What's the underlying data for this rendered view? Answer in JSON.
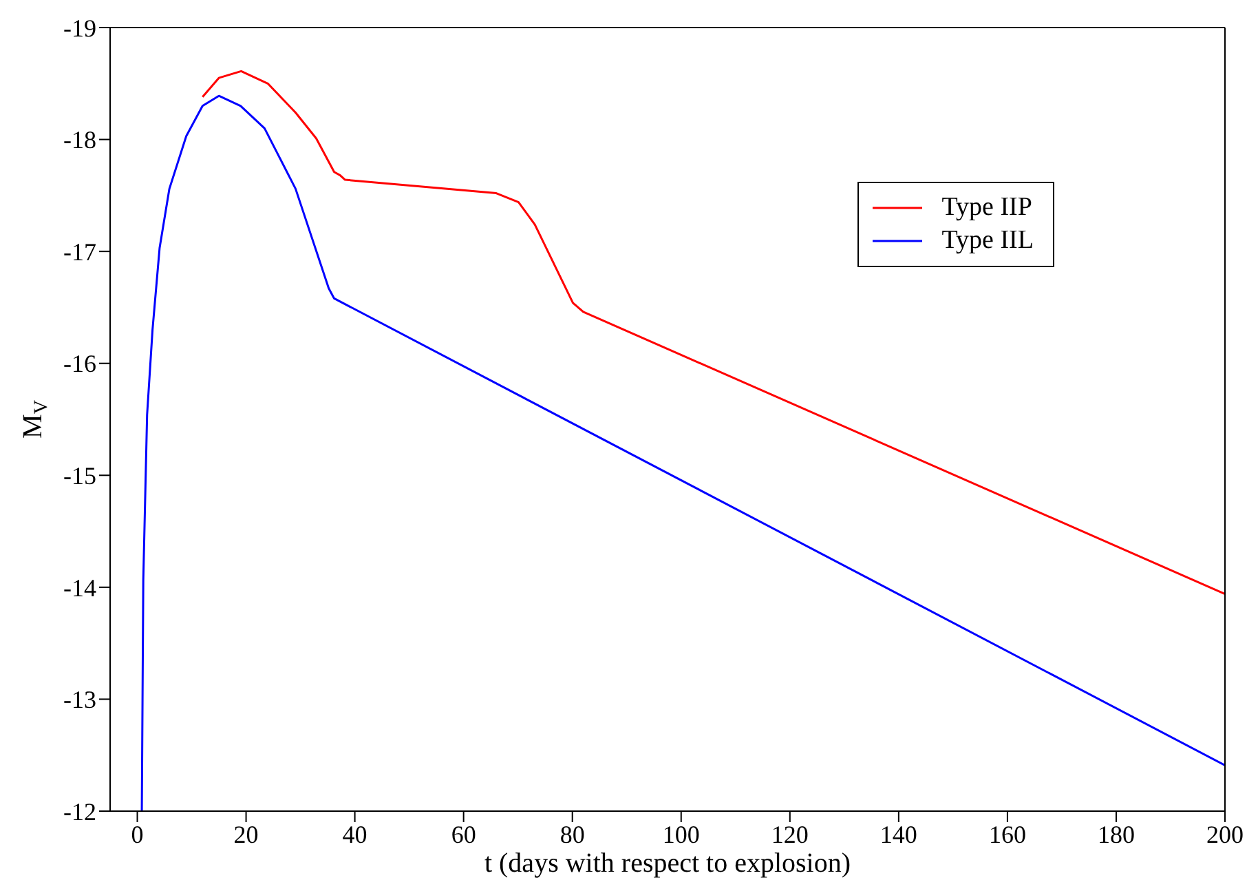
{
  "chart_data": {
    "type": "line",
    "xlabel": "t (days with respect to explosion)",
    "ylabel": "M$_{V}$",
    "xlim": [
      -5,
      200
    ],
    "xticks": [
      0,
      20,
      40,
      60,
      80,
      100,
      120,
      140,
      160,
      180,
      200
    ],
    "ylim": [
      -12,
      -19
    ],
    "yticks": [
      -12,
      -13,
      -14,
      -15,
      -16,
      -17,
      -18,
      -19
    ],
    "legend": "top right",
    "marker": "none",
    "line_style": "solid",
    "series": [
      {
        "name": "Type IIP",
        "color": "#ff0000",
        "x": [
          12.0,
          15.0,
          19.1,
          24.0,
          29.1,
          32.9,
          36.2,
          37.3,
          38.2,
          66.0,
          70.1,
          73.1,
          80.1,
          82.0,
          200
        ],
        "values": [
          -18.38,
          -18.55,
          -18.61,
          -18.5,
          -18.24,
          -18.01,
          -17.71,
          -17.68,
          -17.64,
          -17.52,
          -17.44,
          -17.24,
          -16.54,
          -16.46,
          -13.94
        ]
      },
      {
        "name": "Type IIL",
        "color": "#0000ff",
        "x": [
          0.83,
          1.1,
          1.8,
          2.8,
          4.1,
          5.9,
          9.0,
          12.0,
          15.0,
          19.0,
          23.4,
          29.1,
          35.2,
          36.2,
          200
        ],
        "values": [
          -12,
          -14.06,
          -15.54,
          -16.3,
          -17.03,
          -17.56,
          -18.03,
          -18.3,
          -18.39,
          -18.3,
          -18.1,
          -17.56,
          -16.67,
          -16.58,
          -12.41
        ]
      }
    ]
  }
}
